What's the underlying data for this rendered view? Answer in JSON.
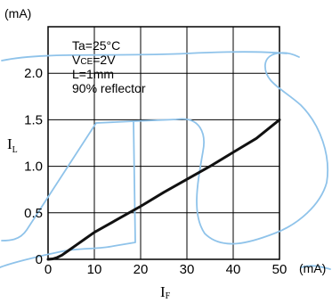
{
  "chart_data": {
    "type": "line",
    "title": "",
    "xlabel": "IF",
    "ylabel": "IL",
    "xlabel_main": "I",
    "xlabel_sub": "F",
    "ylabel_main": "I",
    "ylabel_sub": "L",
    "x_unit": "(mA)",
    "y_unit": "(mA)",
    "xlim": [
      0,
      50
    ],
    "ylim": [
      0,
      2.5
    ],
    "x_ticks": [
      0,
      10,
      20,
      30,
      40,
      50
    ],
    "y_ticks": [
      0,
      0.5,
      1.0,
      1.5,
      2.0
    ],
    "x_tick_labels": [
      "0",
      "10",
      "20",
      "30",
      "40",
      "50"
    ],
    "y_tick_labels": [
      "0",
      "0.5",
      "1.0",
      "1.5",
      "2.0"
    ],
    "grid": true,
    "conditions": [
      {
        "main": "Ta=25°C",
        "sub": "",
        "suffix": ""
      },
      {
        "main": "V",
        "sub": "CE",
        "suffix": "=2V"
      },
      {
        "main": "L=1mm",
        "sub": "",
        "suffix": ""
      },
      {
        "main": "90% reflector",
        "sub": "",
        "suffix": ""
      }
    ],
    "series": [
      {
        "x": [
          0,
          1,
          2,
          3,
          4,
          5,
          6,
          8,
          10,
          15,
          20,
          25,
          30,
          35,
          40,
          45,
          50
        ],
        "values": [
          0,
          0.005,
          0.02,
          0.045,
          0.08,
          0.115,
          0.15,
          0.22,
          0.29,
          0.43,
          0.57,
          0.72,
          0.86,
          1.0,
          1.15,
          1.3,
          1.5
        ]
      }
    ],
    "line_color": "#111111",
    "annotation_color": "#8fc3ea"
  }
}
